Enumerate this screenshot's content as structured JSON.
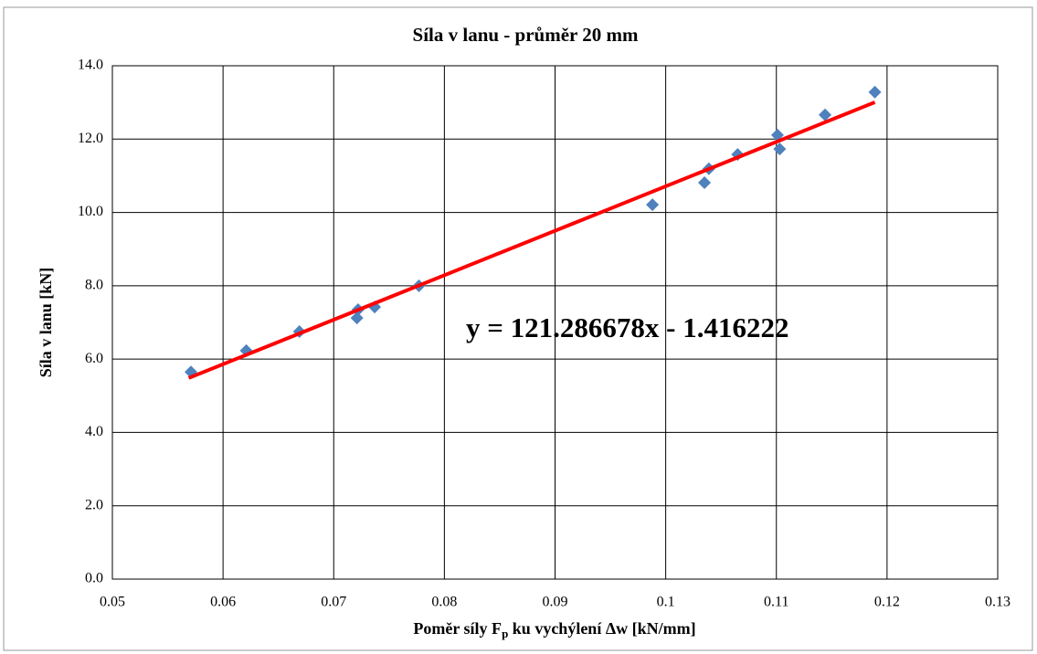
{
  "chart_data": {
    "type": "scatter",
    "title": "Síla v lanu - průměr 20 mm",
    "ylabel": "Síla v lanu [kN]",
    "xlabel": {
      "before": "Poměr síly F",
      "sub": "p",
      "after": " ku vychýlení Δw [kN/mm]"
    },
    "annotation": "y = 121.286678x - 1.416222",
    "x": [
      0.0571,
      0.0621,
      0.0669,
      0.0722,
      0.0721,
      0.0737,
      0.0777,
      0.0988,
      0.1035,
      0.1039,
      0.1065,
      0.1101,
      0.1103,
      0.1144,
      0.1189
    ],
    "values": [
      5.65,
      6.23,
      6.75,
      7.35,
      7.12,
      7.42,
      8.0,
      10.21,
      10.81,
      11.19,
      11.58,
      12.11,
      11.73,
      12.66,
      13.28
    ],
    "color": "#4f81bd",
    "trendline": {
      "x": [
        0.0569,
        0.1189
      ],
      "values": [
        5.485,
        13.005
      ],
      "color": "#ff0000"
    },
    "xlim": [
      0.05,
      0.13
    ],
    "xticks": [
      0.05,
      0.06,
      0.07,
      0.08,
      0.09,
      0.1,
      0.11,
      0.12,
      0.13
    ],
    "ylim": [
      0,
      14
    ],
    "yticks": [
      {
        "value": 0,
        "label": "0.0"
      },
      {
        "value": 2,
        "label": "2.0"
      },
      {
        "value": 4,
        "label": "4.0"
      },
      {
        "value": 6,
        "label": "6.0"
      },
      {
        "value": 8,
        "label": "8.0"
      },
      {
        "value": 10,
        "label": "10.0"
      },
      {
        "value": 12,
        "label": "12.0"
      },
      {
        "value": 14,
        "label": "14.0"
      }
    ],
    "grid": true
  }
}
